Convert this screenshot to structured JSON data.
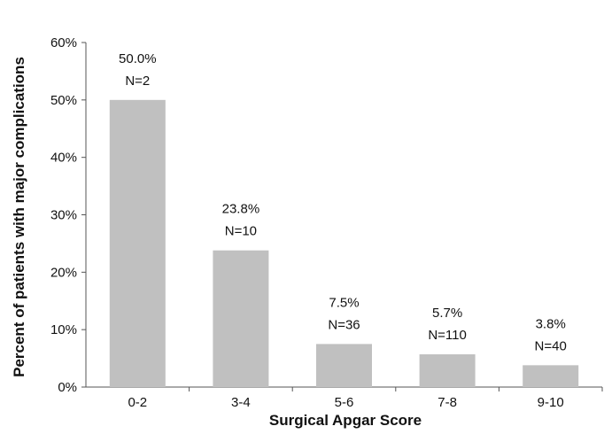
{
  "chart_data": {
    "type": "bar",
    "title": "",
    "xlabel": "Surgical Apgar Score",
    "ylabel": "Percent of patients with major complications",
    "categories": [
      "0-2",
      "3-4",
      "5-6",
      "7-8",
      "9-10"
    ],
    "values": [
      50.0,
      23.8,
      7.5,
      5.7,
      3.8
    ],
    "data_labels": [
      {
        "percent": "50.0%",
        "n": "N=2"
      },
      {
        "percent": "23.8%",
        "n": "N=10"
      },
      {
        "percent": "7.5%",
        "n": "N=36"
      },
      {
        "percent": "5.7%",
        "n": "N=110"
      },
      {
        "percent": "3.8%",
        "n": "N=40"
      }
    ],
    "y_ticks": [
      0,
      10,
      20,
      30,
      40,
      50,
      60
    ],
    "y_tick_labels": [
      "0%",
      "10%",
      "20%",
      "30%",
      "40%",
      "50%",
      "60%"
    ],
    "ylim": [
      0,
      60
    ],
    "grid": false,
    "legend": "none",
    "bar_color": "#c0c0c0",
    "axis_color": "#555555"
  }
}
